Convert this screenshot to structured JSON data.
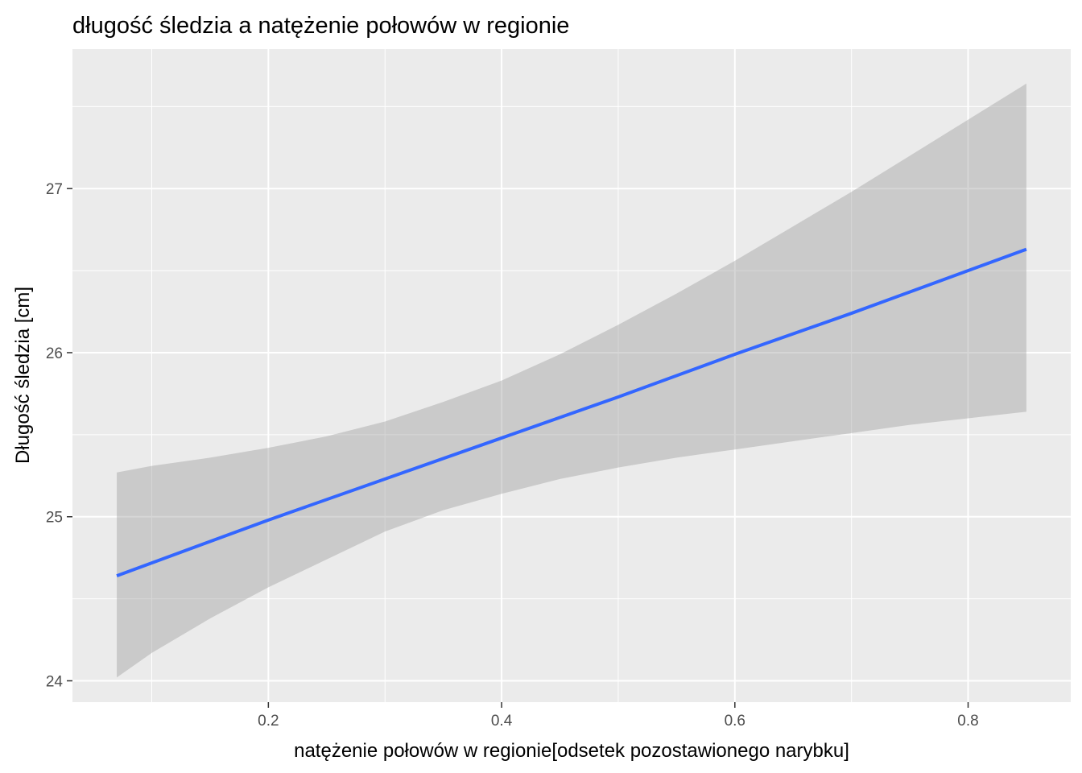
{
  "chart_data": {
    "type": "line",
    "title": "długość śledzia a natężenie połowów w regionie",
    "xlabel": "natężenie połowów w regionie[odsetek pozostawionego narybku]",
    "ylabel": "Długość śledzia [cm]",
    "xlim": [
      0.032,
      0.888
    ],
    "ylim": [
      23.87,
      27.85
    ],
    "xticks": [
      0.2,
      0.4,
      0.6,
      0.8
    ],
    "xtick_labels": [
      "0.2",
      "0.4",
      "0.6",
      "0.8"
    ],
    "yticks": [
      24,
      25,
      26,
      27
    ],
    "ytick_labels": [
      "24",
      "25",
      "26",
      "27"
    ],
    "grid": true,
    "legend": "none",
    "series": [
      {
        "type": "line",
        "color": "#3366FF",
        "x": [
          0.07,
          0.2,
          0.3,
          0.4,
          0.5,
          0.6,
          0.7,
          0.85
        ],
        "y": [
          24.64,
          24.98,
          25.23,
          25.48,
          25.73,
          25.99,
          26.24,
          26.63
        ]
      },
      {
        "type": "confidence-band",
        "color": "#999999",
        "x": [
          0.07,
          0.1,
          0.15,
          0.2,
          0.25,
          0.3,
          0.35,
          0.4,
          0.45,
          0.5,
          0.55,
          0.6,
          0.65,
          0.7,
          0.75,
          0.8,
          0.85
        ],
        "lower": [
          24.02,
          24.17,
          24.38,
          24.57,
          24.74,
          24.91,
          25.04,
          25.14,
          25.23,
          25.3,
          25.36,
          25.41,
          25.46,
          25.51,
          25.56,
          25.6,
          25.64
        ],
        "upper": [
          25.27,
          25.31,
          25.36,
          25.42,
          25.49,
          25.58,
          25.7,
          25.83,
          25.99,
          26.17,
          26.36,
          26.56,
          26.77,
          26.98,
          27.2,
          27.42,
          27.64
        ]
      }
    ]
  }
}
